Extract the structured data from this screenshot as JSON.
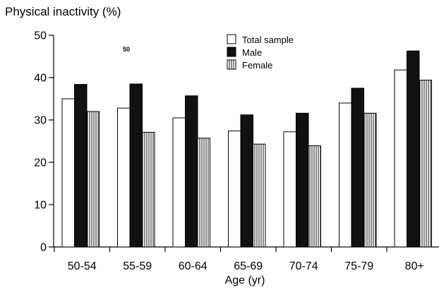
{
  "chart_data": {
    "type": "bar",
    "title": "Physical inactivity (%)",
    "xlabel": "Age (yr)",
    "ylabel": "",
    "ylim": [
      0,
      50
    ],
    "yticks": [
      0,
      10,
      20,
      30,
      40,
      50
    ],
    "categories": [
      "50-54",
      "55-59",
      "60-64",
      "65-69",
      "70-74",
      "75-79",
      "80+"
    ],
    "series": [
      {
        "name": "Total sample",
        "fill": "white",
        "values": [
          35.0,
          32.8,
          30.5,
          27.4,
          27.2,
          34.0,
          41.8
        ]
      },
      {
        "name": "Male",
        "fill": "black",
        "values": [
          38.4,
          38.5,
          35.7,
          31.2,
          31.6,
          37.5,
          46.3
        ]
      },
      {
        "name": "Female",
        "fill": "vertical-stripes",
        "values": [
          32.0,
          27.1,
          25.7,
          24.3,
          23.9,
          31.6,
          39.4
        ]
      }
    ],
    "legend_position": "top-center",
    "grid": false,
    "annotations": [
      "50"
    ]
  },
  "colors": {
    "ink": "#000000",
    "paper": "#ffffff",
    "male": "#111111"
  }
}
